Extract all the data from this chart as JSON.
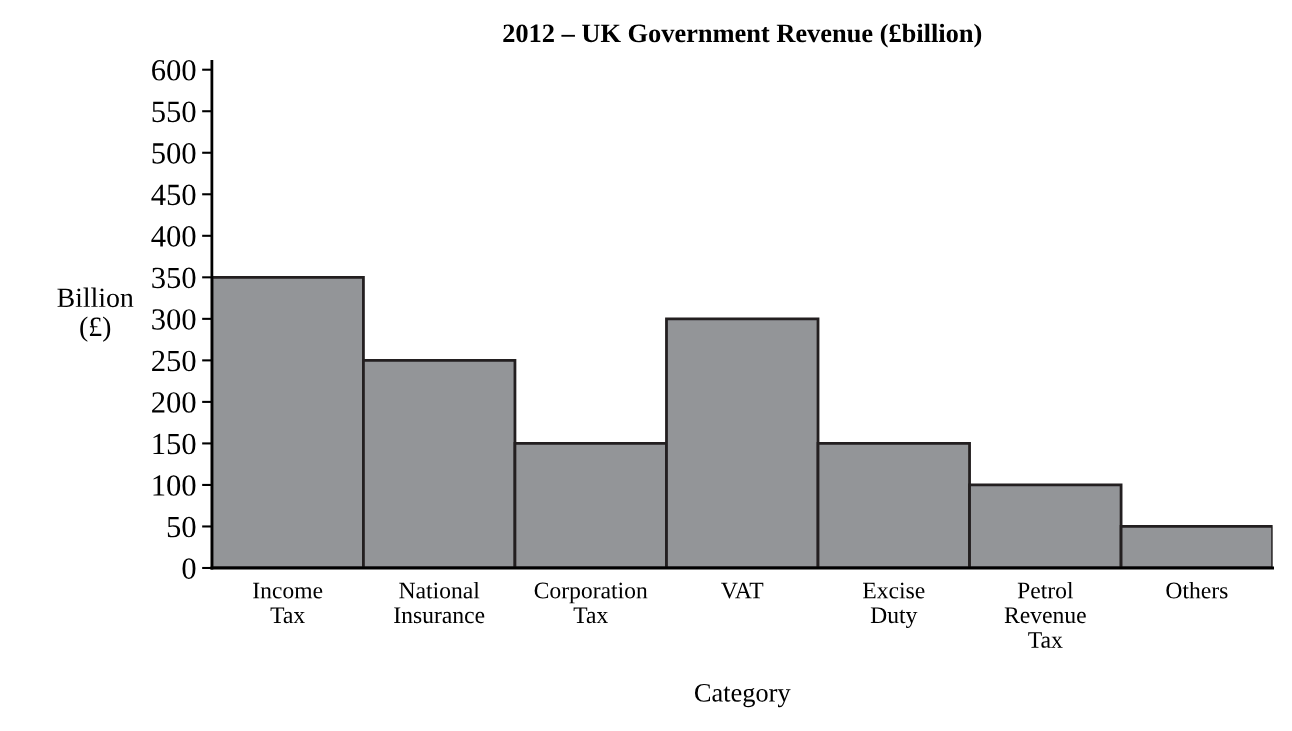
{
  "chart_data": {
    "type": "bar",
    "title": "2012 – UK Government Revenue (£billion)",
    "xlabel": "Category",
    "ylabel": "Billion\n(£)",
    "categories": [
      "Income\nTax",
      "National\nInsurance",
      "Corporation\nTax",
      "VAT",
      "Excise\nDuty",
      "Petrol\nRevenue\nTax",
      "Others"
    ],
    "values": [
      350,
      250,
      150,
      300,
      150,
      100,
      50
    ],
    "color": "#939598",
    "ylim": [
      0,
      610
    ],
    "yticks": [
      0,
      50,
      100,
      150,
      200,
      250,
      300,
      350,
      400,
      450,
      500,
      550,
      600
    ],
    "grid": false,
    "legend": false
  }
}
